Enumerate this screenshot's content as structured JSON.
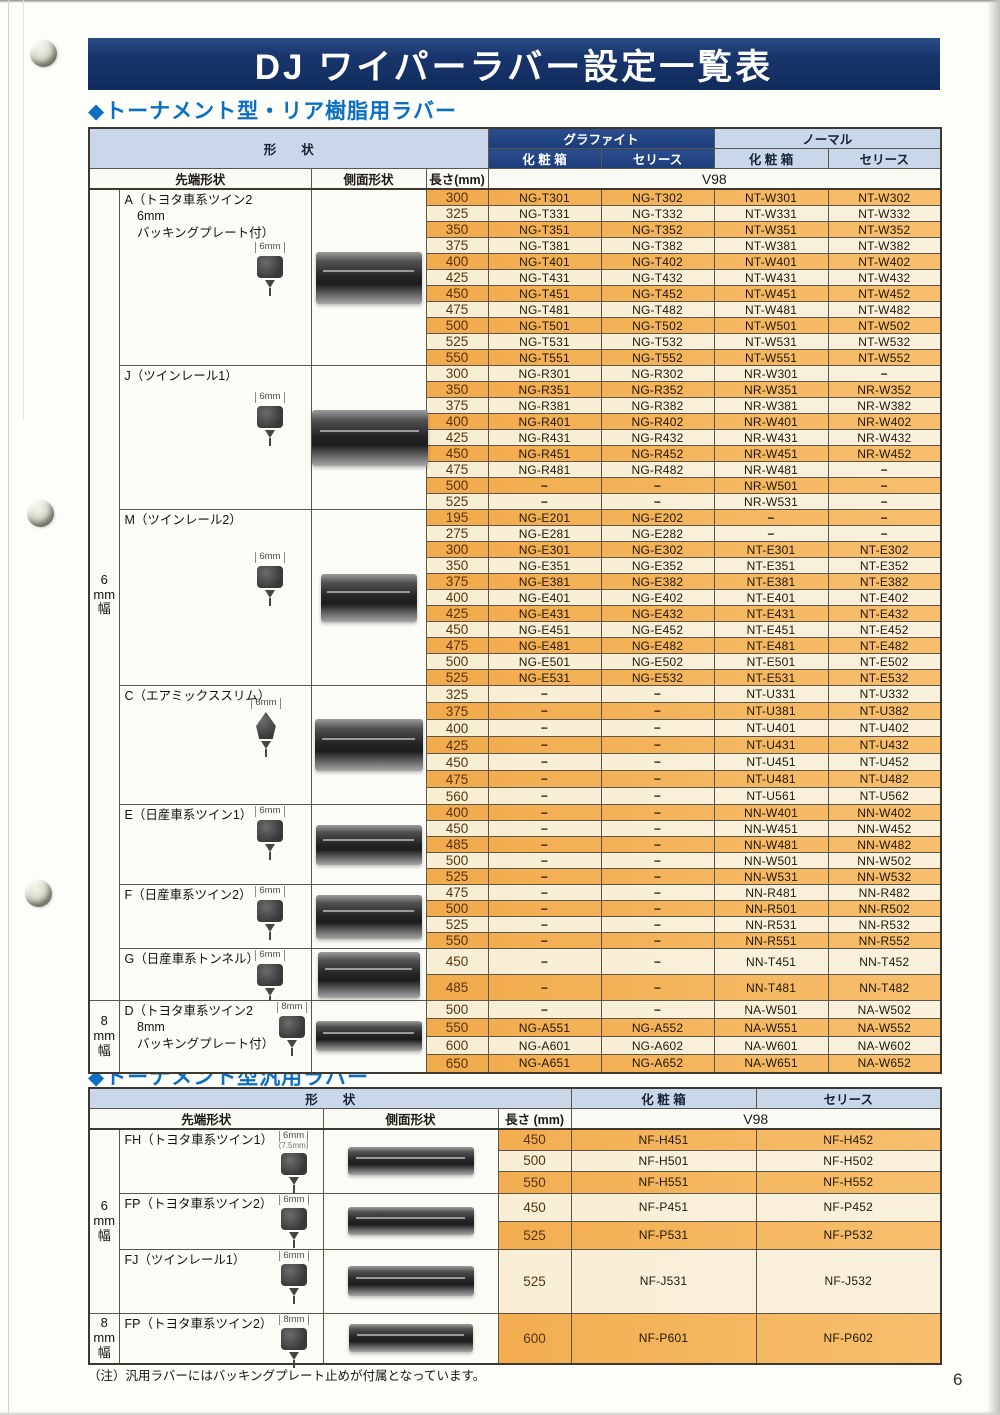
{
  "page": {
    "banner_title": "DJ ワイパーラバー設定一覧表",
    "footnote": "（注）汎用ラバーにはバッキングプレート止めが付属となっています。",
    "page_number": "6"
  },
  "colors": {
    "banner_navy": "#17346a",
    "graphite_header_navy": "#1c3d79",
    "header_light_blue": "#c9d7e9",
    "row_orange": "#f2a444",
    "row_cream": "#f8efd5",
    "section_title_blue": "#0b6fc4"
  },
  "table1": {
    "title": "◆トーナメント型・リア樹脂用ラバー",
    "header": {
      "shape": "形　　状",
      "graphite": "グラファイト",
      "normal": "ノーマル",
      "box": "化 粧 箱",
      "series": "セリース",
      "tip": "先端形状",
      "side": "側面形状",
      "length": "長さ(mm)",
      "v98": "V98"
    },
    "empty_mark": "−",
    "width_groups": [
      {
        "label": "6mm幅",
        "sections": [
          "A",
          "J",
          "M",
          "C",
          "E",
          "F",
          "G"
        ]
      },
      {
        "label": "8mm幅",
        "sections": [
          "D"
        ]
      }
    ],
    "sections": [
      {
        "id": "A",
        "label": "A（トヨタ車系ツイン2\n　6mm\n　バッキングプレート付）",
        "dim": "6mm",
        "rows": [
          [
            "300",
            "NG-T301",
            "NG-T302",
            "NT-W301",
            "NT-W302"
          ],
          [
            "325",
            "NG-T331",
            "NG-T332",
            "NT-W331",
            "NT-W332"
          ],
          [
            "350",
            "NG-T351",
            "NG-T352",
            "NT-W351",
            "NT-W352"
          ],
          [
            "375",
            "NG-T381",
            "NG-T382",
            "NT-W381",
            "NT-W382"
          ],
          [
            "400",
            "NG-T401",
            "NG-T402",
            "NT-W401",
            "NT-W402"
          ],
          [
            "425",
            "NG-T431",
            "NG-T432",
            "NT-W431",
            "NT-W432"
          ],
          [
            "450",
            "NG-T451",
            "NG-T452",
            "NT-W451",
            "NT-W452"
          ],
          [
            "475",
            "NG-T481",
            "NG-T482",
            "NT-W481",
            "NT-W482"
          ],
          [
            "500",
            "NG-T501",
            "NG-T502",
            "NT-W501",
            "NT-W502"
          ],
          [
            "525",
            "NG-T531",
            "NG-T532",
            "NT-W531",
            "NT-W532"
          ],
          [
            "550",
            "NG-T551",
            "NG-T552",
            "NT-W551",
            "NT-W552"
          ]
        ]
      },
      {
        "id": "J",
        "label": "J（ツインレール1）",
        "dim": "6mm",
        "rows": [
          [
            "300",
            "NG-R301",
            "NG-R302",
            "NR-W301",
            "−"
          ],
          [
            "350",
            "NG-R351",
            "NG-R352",
            "NR-W351",
            "NR-W352"
          ],
          [
            "375",
            "NG-R381",
            "NG-R382",
            "NR-W381",
            "NR-W382"
          ],
          [
            "400",
            "NG-R401",
            "NG-R402",
            "NR-W401",
            "NR-W402"
          ],
          [
            "425",
            "NG-R431",
            "NG-R432",
            "NR-W431",
            "NR-W432"
          ],
          [
            "450",
            "NG-R451",
            "NG-R452",
            "NR-W451",
            "NR-W452"
          ],
          [
            "475",
            "NG-R481",
            "NG-R482",
            "NR-W481",
            "−"
          ],
          [
            "500",
            "−",
            "−",
            "NR-W501",
            "−"
          ],
          [
            "525",
            "−",
            "−",
            "NR-W531",
            "−"
          ]
        ]
      },
      {
        "id": "M",
        "label": "M（ツインレール2）",
        "dim": "6mm",
        "rows": [
          [
            "195",
            "NG-E201",
            "NG-E202",
            "−",
            "−"
          ],
          [
            "275",
            "NG-E281",
            "NG-E282",
            "−",
            "−"
          ],
          [
            "300",
            "NG-E301",
            "NG-E302",
            "NT-E301",
            "NT-E302"
          ],
          [
            "350",
            "NG-E351",
            "NG-E352",
            "NT-E351",
            "NT-E352"
          ],
          [
            "375",
            "NG-E381",
            "NG-E382",
            "NT-E381",
            "NT-E382"
          ],
          [
            "400",
            "NG-E401",
            "NG-E402",
            "NT-E401",
            "NT-E402"
          ],
          [
            "425",
            "NG-E431",
            "NG-E432",
            "NT-E431",
            "NT-E432"
          ],
          [
            "450",
            "NG-E451",
            "NG-E452",
            "NT-E451",
            "NT-E452"
          ],
          [
            "475",
            "NG-E481",
            "NG-E482",
            "NT-E481",
            "NT-E482"
          ],
          [
            "500",
            "NG-E501",
            "NG-E502",
            "NT-E501",
            "NT-E502"
          ],
          [
            "525",
            "NG-E531",
            "NG-E532",
            "NT-E531",
            "NT-E532"
          ]
        ]
      },
      {
        "id": "C",
        "label": "C（エアミックススリム）",
        "dim": "6mm",
        "rows": [
          [
            "325",
            "−",
            "−",
            "NT-U331",
            "NT-U332"
          ],
          [
            "375",
            "−",
            "−",
            "NT-U381",
            "NT-U382"
          ],
          [
            "400",
            "−",
            "−",
            "NT-U401",
            "NT-U402"
          ],
          [
            "425",
            "−",
            "−",
            "NT-U431",
            "NT-U432"
          ],
          [
            "450",
            "−",
            "−",
            "NT-U451",
            "NT-U452"
          ],
          [
            "475",
            "−",
            "−",
            "NT-U481",
            "NT-U482"
          ],
          [
            "560",
            "−",
            "−",
            "NT-U561",
            "NT-U562"
          ]
        ]
      },
      {
        "id": "E",
        "label": "E（日産車系ツイン1）",
        "dim": "6mm",
        "rows": [
          [
            "400",
            "−",
            "−",
            "NN-W401",
            "NN-W402"
          ],
          [
            "450",
            "−",
            "−",
            "NN-W451",
            "NN-W452"
          ],
          [
            "485",
            "−",
            "−",
            "NN-W481",
            "NN-W482"
          ],
          [
            "500",
            "−",
            "−",
            "NN-W501",
            "NN-W502"
          ],
          [
            "525",
            "−",
            "−",
            "NN-W531",
            "NN-W532"
          ]
        ]
      },
      {
        "id": "F",
        "label": "F（日産車系ツイン2）",
        "dim": "6mm",
        "rows": [
          [
            "475",
            "−",
            "−",
            "NN-R481",
            "NN-R482"
          ],
          [
            "500",
            "−",
            "−",
            "NN-R501",
            "NN-R502"
          ],
          [
            "525",
            "−",
            "−",
            "NN-R531",
            "NN-R532"
          ],
          [
            "550",
            "−",
            "−",
            "NN-R551",
            "NN-R552"
          ]
        ]
      },
      {
        "id": "G",
        "label": "G（日産車系トンネル）",
        "dim": "6mm",
        "rows": [
          [
            "450",
            "−",
            "−",
            "NN-T451",
            "NN-T452"
          ],
          [
            "485",
            "−",
            "−",
            "NN-T481",
            "NN-T482"
          ]
        ]
      },
      {
        "id": "D",
        "label": "D（トヨタ車系ツイン2\n　8mm\n　バッキングプレート付）",
        "dim": "8mm",
        "rows": [
          [
            "500",
            "−",
            "−",
            "NA-W501",
            "NA-W502"
          ],
          [
            "550",
            "NG-A551",
            "NG-A552",
            "NA-W551",
            "NA-W552"
          ],
          [
            "600",
            "NG-A601",
            "NG-A602",
            "NA-W601",
            "NA-W602"
          ],
          [
            "650",
            "NG-A651",
            "NG-A652",
            "NA-W651",
            "NA-W652"
          ]
        ]
      }
    ]
  },
  "table2": {
    "title": "◆トーナメント型汎用ラバー",
    "header": {
      "shape": "形　　状",
      "box": "化 粧 箱",
      "series": "セリース",
      "tip": "先端形状",
      "side": "側面形状",
      "length": "長さ (mm)",
      "v98": "V98"
    },
    "width_groups": [
      {
        "label": "6mm幅",
        "sections": [
          "FH",
          "FP6",
          "FJ"
        ]
      },
      {
        "label": "8mm幅",
        "sections": [
          "FP8"
        ]
      }
    ],
    "sections": [
      {
        "id": "FH",
        "label": "FH（トヨタ車系ツイン1）",
        "dim": "6mm",
        "dim_sub": "(7.5mm)",
        "rows": [
          [
            "450",
            "NF-H451",
            "NF-H452"
          ],
          [
            "500",
            "NF-H501",
            "NF-H502"
          ],
          [
            "550",
            "NF-H551",
            "NF-H552"
          ]
        ]
      },
      {
        "id": "FP6",
        "label": "FP（トヨタ車系ツイン2）",
        "dim": "6mm",
        "rows": [
          [
            "450",
            "NF-P451",
            "NF-P452"
          ],
          [
            "525",
            "NF-P531",
            "NF-P532"
          ]
        ]
      },
      {
        "id": "FJ",
        "label": "FJ（ツインレール1）",
        "dim": "6mm",
        "rows": [
          [
            "525",
            "NF-J531",
            "NF-J532"
          ]
        ]
      },
      {
        "id": "FP8",
        "label": "FP（トヨタ車系ツイン2）",
        "dim": "8mm",
        "rows": [
          [
            "600",
            "NF-P601",
            "NF-P602"
          ]
        ]
      }
    ]
  }
}
